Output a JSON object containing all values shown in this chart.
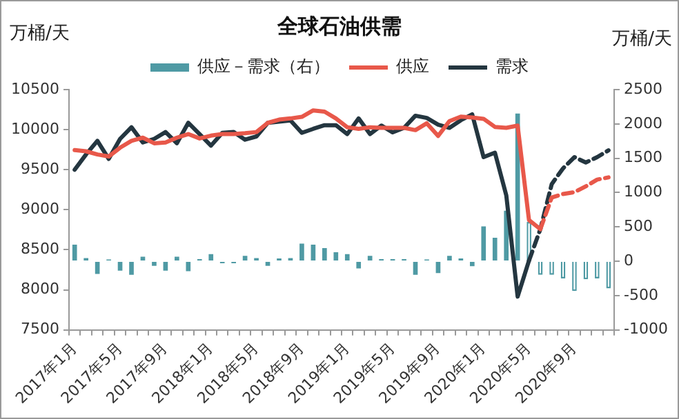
{
  "chart_data": {
    "type": "line",
    "title": "全球石油供需",
    "ylabel": "万桶/天",
    "y2label": "万桶/天",
    "categories": [
      "2017年1月",
      null,
      null,
      null,
      "2017年5月",
      null,
      null,
      null,
      "2017年9月",
      null,
      null,
      null,
      "2018年1月",
      null,
      null,
      null,
      "2018年5月",
      null,
      null,
      null,
      "2018年9月",
      null,
      null,
      null,
      "2019年1月",
      null,
      null,
      null,
      "2019年5月",
      null,
      null,
      null,
      "2019年9月",
      null,
      null,
      null,
      "2020年1月",
      null,
      null,
      null,
      "2020年5月",
      null,
      null,
      null,
      "2020年9月",
      null,
      null,
      null
    ],
    "series": [
      {
        "name": "供应－需求（右）",
        "type": "bar",
        "axis": "y2",
        "color": "#4f9aa4",
        "values": [
          243,
          46,
          -184,
          26,
          -138,
          -197,
          66,
          -66,
          -138,
          66,
          -145,
          30,
          105,
          -30,
          -30,
          79,
          46,
          -66,
          40,
          46,
          257,
          243,
          191,
          132,
          105,
          -105,
          79,
          30,
          30,
          30,
          -197,
          26,
          -171,
          79,
          40,
          -72,
          507,
          342,
          737,
          2151,
          null,
          null,
          null,
          null,
          null,
          null,
          null,
          null
        ]
      },
      {
        "type": "bar",
        "axis": "y2",
        "color": "#4f9aa4",
        "line_style": "dashed",
        "values": [
          null,
          null,
          null,
          null,
          null,
          null,
          null,
          null,
          null,
          null,
          null,
          null,
          null,
          null,
          null,
          null,
          null,
          null,
          null,
          null,
          null,
          null,
          null,
          null,
          null,
          null,
          null,
          null,
          null,
          null,
          null,
          null,
          null,
          null,
          null,
          null,
          null,
          null,
          null,
          null,
          572,
          -197,
          -197,
          -250,
          -434,
          -263,
          -250,
          -395
        ]
      },
      {
        "name": "供应",
        "color": "#e8584a",
        "values": [
          9745,
          9730,
          9690,
          9665,
          9775,
          9860,
          9900,
          9830,
          9840,
          9900,
          9945,
          9890,
          9925,
          9945,
          9945,
          9955,
          9970,
          10085,
          10125,
          10140,
          10160,
          10240,
          10225,
          10140,
          10030,
          10010,
          10030,
          10022,
          10022,
          10022,
          9994,
          10079,
          9921,
          10107,
          10163,
          10152,
          10135,
          10034,
          10022,
          10050,
          8871,
          8758,
          null,
          null,
          null,
          null,
          null,
          null
        ]
      },
      {
        "name": "需求",
        "color": "#243640",
        "values": [
          9500,
          9690,
          9860,
          9635,
          9885,
          10030,
          9840,
          9885,
          9970,
          9830,
          10085,
          9945,
          9800,
          9960,
          9970,
          9875,
          9915,
          10085,
          10100,
          10115,
          9960,
          10010,
          10055,
          10055,
          9945,
          10140,
          9945,
          10051,
          9966,
          10022,
          10174,
          10146,
          10062,
          10022,
          10118,
          10191,
          9657,
          9713,
          9180,
          7916,
          8365,
          null,
          null,
          null,
          null,
          null,
          null,
          null
        ]
      },
      {
        "color": "#e8584a",
        "line_style": "dashed",
        "values": [
          null,
          null,
          null,
          null,
          null,
          null,
          null,
          null,
          null,
          null,
          null,
          null,
          null,
          null,
          null,
          null,
          null,
          null,
          null,
          null,
          null,
          null,
          null,
          null,
          null,
          null,
          null,
          null,
          null,
          null,
          null,
          null,
          null,
          null,
          null,
          null,
          null,
          null,
          null,
          null,
          null,
          8758,
          9152,
          9197,
          9219,
          9292,
          9376,
          9404
        ]
      },
      {
        "color": "#243640",
        "line_style": "dashed",
        "values": [
          null,
          null,
          null,
          null,
          null,
          null,
          null,
          null,
          null,
          null,
          null,
          null,
          null,
          null,
          null,
          null,
          null,
          null,
          null,
          null,
          null,
          null,
          null,
          null,
          null,
          null,
          null,
          null,
          null,
          null,
          null,
          null,
          null,
          null,
          null,
          null,
          null,
          null,
          null,
          null,
          8365,
          8758,
          9320,
          9517,
          9657,
          9590,
          9657,
          9742
        ]
      }
    ],
    "ylim": [
      7500,
      10500
    ],
    "yticks": [
      7500,
      8000,
      8500,
      9000,
      9500,
      10000,
      10500
    ],
    "y2lim": [
      -1000,
      2500
    ],
    "y2ticks": [
      -1000,
      -500,
      0,
      500,
      1000,
      1500,
      2000,
      2500
    ],
    "grid": false,
    "legend": "top",
    "marker": "none",
    "line_style": "solid"
  }
}
